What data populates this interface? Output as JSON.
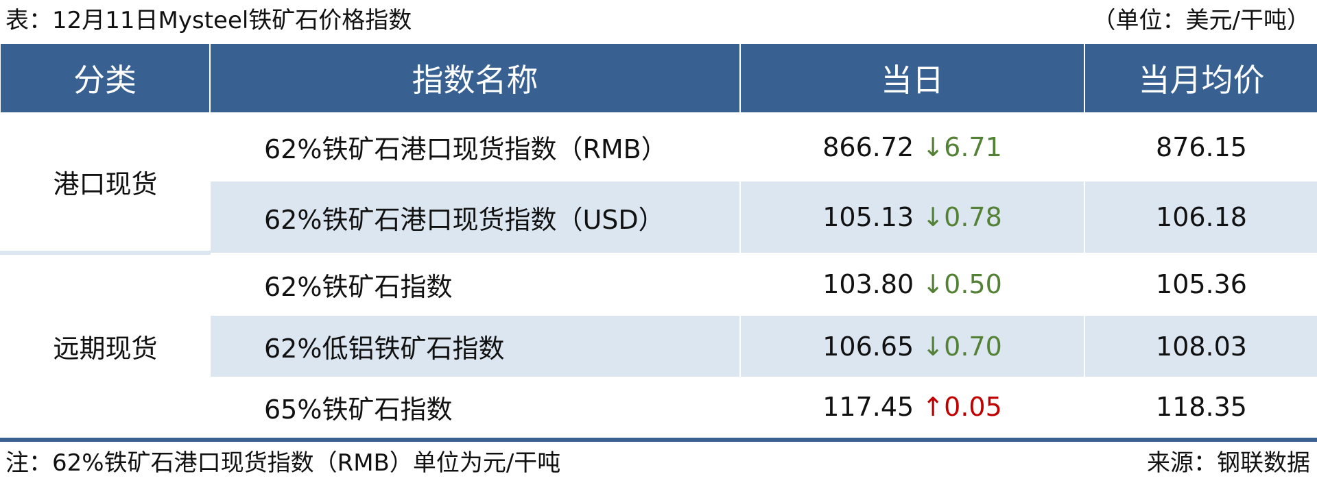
{
  "title": "表：12月11日Mysteel铁矿石价格指数",
  "unit": "（单位：美元/干吨）",
  "headers": [
    "分类",
    "指数名称",
    "当日",
    "当月均价"
  ],
  "categories": [
    "港口现货",
    "远期现货"
  ],
  "rows": [
    {
      "name": "62%铁矿石港口现货指数（RMB）",
      "today": "866.72",
      "arrow": "↓",
      "change": "6.71",
      "direction": "down",
      "month_avg": "876.15"
    },
    {
      "name": "62%铁矿石港口现货指数（USD）",
      "today": "105.13",
      "arrow": "↓",
      "change": "0.78",
      "direction": "down",
      "month_avg": "106.18"
    },
    {
      "name": "62%铁矿石指数",
      "today": "103.80",
      "arrow": "↓",
      "change": "0.50",
      "direction": "down",
      "month_avg": "105.36"
    },
    {
      "name": "62%低铝铁矿石指数",
      "today": "106.65",
      "arrow": "↓",
      "change": "0.70",
      "direction": "down",
      "month_avg": "108.03"
    },
    {
      "name": "65%铁矿石指数",
      "today": "117.45",
      "arrow": "↑",
      "change": "0.05",
      "direction": "up",
      "month_avg": "118.35"
    }
  ],
  "note": "注：62%铁矿石港口现货指数（RMB）单位为元/干吨",
  "source": "来源：钢联数据",
  "colors": {
    "header": "#386192",
    "stripe": "#dce6f1",
    "down": "#538135",
    "up": "#c00000"
  }
}
